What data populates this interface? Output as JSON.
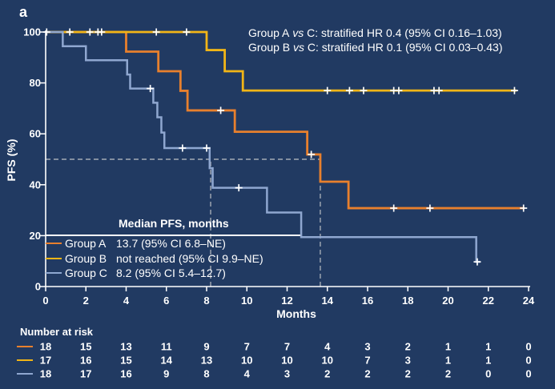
{
  "figure_label": "a",
  "colors": {
    "background": "#213a62",
    "text": "#ffffff",
    "axis": "#ffffff",
    "dashed_reference": "#a4abb5",
    "censor_mark": "#ffffff",
    "group_a": "#e8802d",
    "group_b": "#f1b517",
    "group_c": "#8fa7d0"
  },
  "annotation": {
    "lines": [
      {
        "group": "Group A",
        "vs": " vs ",
        "rest": "C: stratified HR 0.4 (95% CI 0.16–1.03)"
      },
      {
        "group": "Group B",
        "vs": " vs ",
        "rest": "C: stratified HR 0.1 (95% CI 0.03–0.43)"
      }
    ]
  },
  "legend": {
    "header": "Median PFS, months",
    "rows": [
      {
        "label": "Group A",
        "median": "13.7 (95% CI 6.8–NE)"
      },
      {
        "label": "Group B",
        "median": "not reached (95% CI 9.9–NE)"
      },
      {
        "label": "Group C",
        "median": "8.2 (95% CI 5.4–12.7)"
      }
    ]
  },
  "risk_table": {
    "header": "Number at risk",
    "months": [
      0,
      2,
      4,
      6,
      8,
      10,
      12,
      14,
      16,
      18,
      20,
      22,
      24
    ],
    "rows": [
      {
        "group": "Group A",
        "color": "#e8802d",
        "values": [
          18,
          15,
          13,
          11,
          9,
          7,
          7,
          4,
          3,
          2,
          1,
          1,
          0
        ]
      },
      {
        "group": "Group B",
        "color": "#f1b517",
        "values": [
          17,
          16,
          15,
          14,
          13,
          10,
          10,
          10,
          7,
          3,
          1,
          1,
          0
        ]
      },
      {
        "group": "Group C",
        "color": "#8fa7d0",
        "values": [
          18,
          17,
          16,
          9,
          8,
          4,
          3,
          2,
          2,
          2,
          2,
          0,
          0
        ]
      }
    ]
  },
  "chart_data": {
    "type": "line",
    "subtype": "kaplan-meier-step",
    "title": "",
    "xlabel": "Months",
    "ylabel": "PFS (%)",
    "xlim": [
      0,
      24
    ],
    "ylim": [
      0,
      100
    ],
    "xticks": [
      0,
      2,
      4,
      6,
      8,
      10,
      12,
      14,
      16,
      18,
      20,
      22,
      24
    ],
    "yticks": [
      0,
      20,
      40,
      60,
      80,
      100
    ],
    "grid": false,
    "legend_position": "inside-lower-left",
    "series": [
      {
        "name": "Group A",
        "color": "#e8802d",
        "width": 2.8,
        "steps": [
          [
            0,
            100
          ],
          [
            4.0,
            92.3
          ],
          [
            5.6,
            84.6
          ],
          [
            6.7,
            76.9
          ],
          [
            7.05,
            69.2
          ],
          [
            9.4,
            60.8
          ],
          [
            13.0,
            51.9
          ],
          [
            13.65,
            41.2
          ],
          [
            15.05,
            30.8
          ]
        ],
        "end": 23.8,
        "censors": [
          [
            8.7,
            69.2
          ],
          [
            13.2,
            51.9
          ],
          [
            17.3,
            30.8
          ],
          [
            19.1,
            30.8
          ],
          [
            23.75,
            30.8
          ]
        ]
      },
      {
        "name": "Group B",
        "color": "#f1b517",
        "width": 2.8,
        "steps": [
          [
            0,
            100
          ],
          [
            8.0,
            92.9
          ],
          [
            8.9,
            84.6
          ],
          [
            9.8,
            77.0
          ]
        ],
        "end": 23.4,
        "censors": [
          [
            0.05,
            100
          ],
          [
            1.2,
            100
          ],
          [
            2.2,
            100
          ],
          [
            2.6,
            100
          ],
          [
            2.78,
            100
          ],
          [
            5.5,
            100
          ],
          [
            7.0,
            100
          ],
          [
            14.0,
            77.0
          ],
          [
            15.1,
            77.0
          ],
          [
            15.8,
            77.0
          ],
          [
            17.3,
            77.0
          ],
          [
            17.55,
            77.0
          ],
          [
            19.3,
            77.0
          ],
          [
            19.55,
            77.0
          ],
          [
            23.3,
            77.0
          ]
        ]
      },
      {
        "name": "Group C",
        "color": "#8fa7d0",
        "width": 2.5,
        "steps": [
          [
            0,
            100
          ],
          [
            0.85,
            94.4
          ],
          [
            2.0,
            88.9
          ],
          [
            4.05,
            83.3
          ],
          [
            4.2,
            77.8
          ],
          [
            5.35,
            72.2
          ],
          [
            5.55,
            66.5
          ],
          [
            5.75,
            60.5
          ],
          [
            5.9,
            54.4
          ],
          [
            8.15,
            46.5
          ],
          [
            8.3,
            38.8
          ],
          [
            11.0,
            29.1
          ],
          [
            12.7,
            19.4
          ],
          [
            21.4,
            9.7
          ]
        ],
        "end": 21.6,
        "censors": [
          [
            5.2,
            77.8
          ],
          [
            6.8,
            54.4
          ],
          [
            8.0,
            54.4
          ],
          [
            9.6,
            38.8
          ],
          [
            21.45,
            9.7
          ]
        ]
      }
    ],
    "reference_lines": [
      {
        "type": "h",
        "value": 50,
        "from": 0,
        "to": 13.65
      },
      {
        "type": "v",
        "value": 8.2,
        "from": 0,
        "to": 50
      },
      {
        "type": "v",
        "value": 13.65,
        "from": 0,
        "to": 50
      }
    ]
  }
}
